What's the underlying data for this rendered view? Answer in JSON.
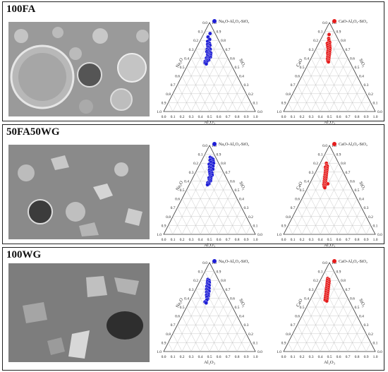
{
  "panels": [
    {
      "label": "100FA",
      "micrograph": "SEM micrograph with round particles",
      "diagrams": [
        {
          "legend": "Na₂O-Al₂O₃-SiO₂",
          "color": "#1f1fd6",
          "apex_label": "Na₂O",
          "right_label": "SiO₂",
          "bottom_label": "Al₂O₃"
        },
        {
          "legend": "CaO-Al₂O₃-SiO₂",
          "color": "#e51c1c",
          "apex_label": "CaO",
          "right_label": "SiO₂",
          "bottom_label": "Al₂O₃"
        }
      ]
    },
    {
      "label": "50FA50WG",
      "micrograph": "SEM micrograph of mixed particles",
      "diagrams": [
        {
          "legend": "Na₂O-Al₂O₃-SiO₂",
          "color": "#1f1fd6",
          "apex_label": "Na₂O",
          "right_label": "SiO₂",
          "bottom_label": "Al₂O₃"
        },
        {
          "legend": "CaO-Al₂O₃-SiO₂",
          "color": "#e51c1c",
          "apex_label": "CaO",
          "right_label": "SiO₂",
          "bottom_label": "Al₂O₃"
        }
      ]
    },
    {
      "label": "100WG",
      "micrograph": "SEM micrograph of angular glass particles",
      "diagrams": [
        {
          "legend": "Na₂O-Al₂O₃-SiO₂",
          "color": "#1f1fd6",
          "apex_label": "Na₂O",
          "right_label": "SiO₂",
          "bottom_label": "Al₂O₃"
        },
        {
          "legend": "CaO-Al₂O₃-SiO₂",
          "color": "#e51c1c",
          "apex_label": "CaO",
          "right_label": "SiO₂",
          "bottom_label": "Al₂O₃"
        }
      ]
    }
  ],
  "chart_data": [
    {
      "type": "scatter",
      "subplot": "100FA Na2O-Al2O3-SiO2",
      "series": [
        {
          "name": "Na₂O-Al₂O₃-SiO₂",
          "points": [
            [
              0.08,
              0.08
            ],
            [
              0.15,
              0.05
            ],
            [
              0.2,
              0.15
            ],
            [
              0.24,
              0.1
            ],
            [
              0.28,
              0.2
            ],
            [
              0.3,
              0.14
            ],
            [
              0.32,
              0.25
            ],
            [
              0.34,
              0.18
            ],
            [
              0.36,
              0.22
            ],
            [
              0.38,
              0.28
            ],
            [
              0.4,
              0.2
            ],
            [
              0.4,
              0.32
            ],
            [
              0.42,
              0.26
            ],
            [
              0.44,
              0.3
            ],
            [
              0.45,
              0.22
            ],
            [
              0.46,
              0.36
            ],
            [
              0.48,
              0.28
            ],
            [
              0.48,
              0.4
            ],
            [
              0.5,
              0.34
            ],
            [
              0.52,
              0.3
            ],
            [
              0.52,
              0.42
            ],
            [
              0.54,
              0.38
            ],
            [
              0.55,
              0.34
            ],
            [
              0.56,
              0.44
            ],
            [
              0.58,
              0.4
            ],
            [
              0.58,
              0.3
            ],
            [
              0.6,
              0.36
            ],
            [
              0.62,
              0.42
            ],
            [
              0.62,
              0.34
            ],
            [
              0.64,
              0.38
            ],
            [
              0.65,
              0.3
            ],
            [
              0.66,
              0.36
            ],
            [
              0.68,
              0.32
            ],
            [
              0.7,
              0.38
            ]
          ]
        }
      ],
      "ticks": [
        0,
        0.1,
        0.2,
        0.3,
        0.4,
        0.5,
        0.6,
        0.7,
        0.8,
        0.9,
        1.0
      ]
    },
    {
      "type": "scatter",
      "subplot": "100FA CaO-Al2O3-SiO2",
      "series": [
        {
          "name": "CaO-Al₂O₃-SiO₂",
          "points": [
            [
              0.1,
              0.06
            ],
            [
              0.18,
              0.1
            ],
            [
              0.22,
              0.14
            ],
            [
              0.26,
              0.2
            ],
            [
              0.28,
              0.12
            ],
            [
              0.3,
              0.22
            ],
            [
              0.32,
              0.16
            ],
            [
              0.34,
              0.26
            ],
            [
              0.36,
              0.2
            ],
            [
              0.38,
              0.3
            ],
            [
              0.4,
              0.24
            ],
            [
              0.42,
              0.32
            ],
            [
              0.44,
              0.26
            ],
            [
              0.46,
              0.34
            ],
            [
              0.48,
              0.28
            ],
            [
              0.5,
              0.36
            ],
            [
              0.52,
              0.32
            ],
            [
              0.54,
              0.38
            ],
            [
              0.56,
              0.34
            ],
            [
              0.58,
              0.4
            ],
            [
              0.6,
              0.36
            ],
            [
              0.62,
              0.42
            ],
            [
              0.64,
              0.4
            ],
            [
              0.66,
              0.44
            ]
          ]
        }
      ],
      "ticks": [
        0,
        0.1,
        0.2,
        0.3,
        0.4,
        0.5,
        0.6,
        0.7,
        0.8,
        0.9,
        1.0
      ]
    },
    {
      "type": "scatter",
      "subplot": "50FA50WG Na2O-Al2O3-SiO2",
      "series": [
        {
          "name": "Na₂O-Al₂O₃-SiO₂",
          "points": [
            [
              0.1,
              0.1
            ],
            [
              0.12,
              0.18
            ],
            [
              0.14,
              0.24
            ],
            [
              0.16,
              0.14
            ],
            [
              0.18,
              0.28
            ],
            [
              0.2,
              0.2
            ],
            [
              0.22,
              0.32
            ],
            [
              0.24,
              0.16
            ],
            [
              0.26,
              0.26
            ],
            [
              0.28,
              0.34
            ],
            [
              0.3,
              0.22
            ],
            [
              0.32,
              0.3
            ],
            [
              0.34,
              0.38
            ],
            [
              0.36,
              0.26
            ],
            [
              0.38,
              0.34
            ],
            [
              0.4,
              0.3
            ],
            [
              0.42,
              0.4
            ],
            [
              0.44,
              0.34
            ],
            [
              0.46,
              0.44
            ],
            [
              0.48,
              0.38
            ],
            [
              0.5,
              0.42
            ],
            [
              0.52,
              0.36
            ],
            [
              0.54,
              0.44
            ],
            [
              0.56,
              0.4
            ],
            [
              0.58,
              0.46
            ],
            [
              0.6,
              0.42
            ],
            [
              0.62,
              0.38
            ],
            [
              0.64,
              0.44
            ],
            [
              0.66,
              0.4
            ]
          ]
        }
      ],
      "ticks": [
        0,
        0.1,
        0.2,
        0.3,
        0.4,
        0.5,
        0.6,
        0.7,
        0.8,
        0.9,
        1.0
      ]
    },
    {
      "type": "scatter",
      "subplot": "50FA50WG CaO-Al2O3-SiO2",
      "series": [
        {
          "name": "CaO-Al₂O₃-SiO₂",
          "points": [
            [
              0.22,
              0.04
            ],
            [
              0.26,
              0.08
            ],
            [
              0.28,
              0.12
            ],
            [
              0.3,
              0.06
            ],
            [
              0.32,
              0.14
            ],
            [
              0.34,
              0.1
            ],
            [
              0.36,
              0.16
            ],
            [
              0.38,
              0.12
            ],
            [
              0.4,
              0.18
            ],
            [
              0.42,
              0.14
            ],
            [
              0.44,
              0.2
            ],
            [
              0.46,
              0.16
            ],
            [
              0.48,
              0.22
            ],
            [
              0.5,
              0.18
            ],
            [
              0.52,
              0.24
            ],
            [
              0.54,
              0.2
            ],
            [
              0.56,
              0.26
            ],
            [
              0.58,
              0.22
            ],
            [
              0.6,
              0.28
            ],
            [
              0.62,
              0.24
            ],
            [
              0.64,
              0.3
            ],
            [
              0.66,
              0.26
            ],
            [
              0.68,
              0.32
            ],
            [
              0.7,
              0.3
            ],
            [
              0.64,
              0.4
            ],
            [
              0.72,
              0.34
            ]
          ]
        }
      ],
      "ticks": [
        0,
        0.1,
        0.2,
        0.3,
        0.4,
        0.5,
        0.6,
        0.7,
        0.8,
        0.9,
        1.0
      ]
    },
    {
      "type": "scatter",
      "subplot": "100WG Na2O-Al2O3-SiO2",
      "series": [
        {
          "name": "Na₂O-Al₂O₃-SiO₂",
          "points": [
            [
              0.2,
              0.08
            ],
            [
              0.22,
              0.14
            ],
            [
              0.24,
              0.1
            ],
            [
              0.26,
              0.18
            ],
            [
              0.28,
              0.12
            ],
            [
              0.3,
              0.16
            ],
            [
              0.32,
              0.22
            ],
            [
              0.34,
              0.14
            ],
            [
              0.36,
              0.2
            ],
            [
              0.38,
              0.26
            ],
            [
              0.4,
              0.18
            ],
            [
              0.42,
              0.24
            ],
            [
              0.44,
              0.3
            ],
            [
              0.46,
              0.22
            ],
            [
              0.48,
              0.28
            ],
            [
              0.5,
              0.32
            ],
            [
              0.52,
              0.26
            ],
            [
              0.54,
              0.34
            ],
            [
              0.56,
              0.3
            ],
            [
              0.6,
              0.36
            ],
            [
              0.62,
              0.34
            ],
            [
              0.66,
              0.3
            ],
            [
              0.68,
              0.36
            ]
          ]
        }
      ],
      "ticks": [
        0,
        0.1,
        0.2,
        0.3,
        0.4,
        0.5,
        0.6,
        0.7,
        0.8,
        0.9,
        1.0
      ]
    },
    {
      "type": "scatter",
      "subplot": "100WG CaO-Al2O3-SiO2",
      "series": [
        {
          "name": "CaO-Al₂O₃-SiO₂",
          "points": [
            [
              0.18,
              0.06
            ],
            [
              0.2,
              0.12
            ],
            [
              0.22,
              0.08
            ],
            [
              0.24,
              0.16
            ],
            [
              0.26,
              0.1
            ],
            [
              0.28,
              0.18
            ],
            [
              0.3,
              0.12
            ],
            [
              0.32,
              0.2
            ],
            [
              0.34,
              0.14
            ],
            [
              0.36,
              0.22
            ],
            [
              0.38,
              0.16
            ],
            [
              0.4,
              0.24
            ],
            [
              0.42,
              0.18
            ],
            [
              0.44,
              0.26
            ],
            [
              0.46,
              0.2
            ],
            [
              0.48,
              0.28
            ],
            [
              0.5,
              0.22
            ],
            [
              0.52,
              0.3
            ],
            [
              0.54,
              0.24
            ],
            [
              0.56,
              0.32
            ],
            [
              0.58,
              0.26
            ],
            [
              0.6,
              0.34
            ],
            [
              0.62,
              0.28
            ],
            [
              0.64,
              0.36
            ]
          ]
        }
      ],
      "ticks": [
        0,
        0.1,
        0.2,
        0.3,
        0.4,
        0.5,
        0.6,
        0.7,
        0.8,
        0.9,
        1.0
      ]
    }
  ]
}
